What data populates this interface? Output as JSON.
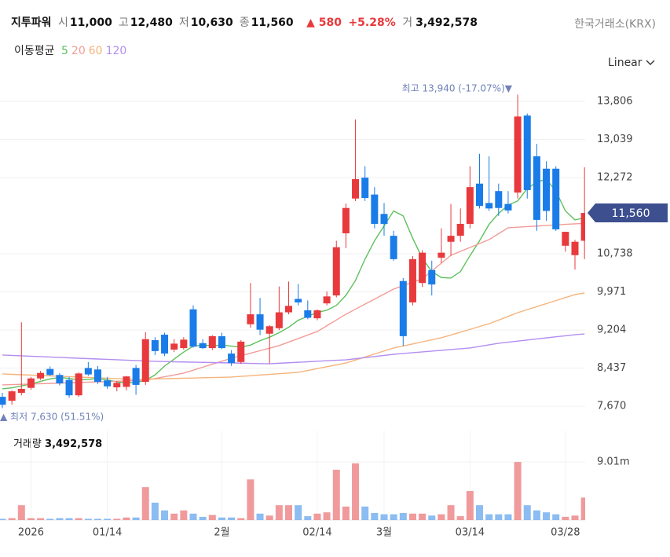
{
  "chart_data": {
    "type": "candlestick",
    "header": {
      "name": "지투파워",
      "quotes": [
        {
          "label": "시",
          "value": "11,000"
        },
        {
          "label": "고",
          "value": "12,480"
        },
        {
          "label": "저",
          "value": "10,630"
        },
        {
          "label": "종",
          "value": "11,560"
        }
      ],
      "change": "▲ 580",
      "change_pct": "+5.28%",
      "turnover_label": "거",
      "turnover": "3,492,578",
      "exchange": "한국거래소(KRX)"
    },
    "ma_title": "이동평균",
    "scale": "Linear",
    "high_note": "최고 13,940 (-17.07%)▼",
    "low_note": "▲ 최저 7,630 (51.51%)",
    "volume_title": "거래량",
    "volume_value": "3,492,578",
    "last_price": {
      "value": 11560,
      "label": "11,560"
    },
    "up_color": "#e8393c",
    "down_color": "#1a7ce8",
    "volume_up_color": "#f09a9c",
    "volume_down_color": "#8bbcf2",
    "categories": [
      null,
      null,
      null,
      "2026",
      null,
      null,
      null,
      null,
      null,
      null,
      null,
      "01/14",
      null,
      null,
      null,
      null,
      null,
      null,
      null,
      null,
      null,
      null,
      null,
      "2월",
      null,
      null,
      null,
      null,
      null,
      null,
      null,
      null,
      null,
      "02/14",
      null,
      null,
      null,
      null,
      null,
      null,
      "3월",
      null,
      null,
      null,
      null,
      null,
      null,
      null,
      null,
      "03/14",
      null,
      null,
      null,
      null,
      null,
      null,
      null,
      null,
      null,
      "03/28",
      null,
      null
    ],
    "ohlc": {
      "open": [
        7860,
        7780,
        7940,
        8040,
        8230,
        8420,
        8300,
        8200,
        7890,
        8440,
        8410,
        8190,
        8050,
        8060,
        8440,
        8160,
        9000,
        9110,
        8810,
        8840,
        9620,
        8940,
        8840,
        9080,
        8730,
        8560,
        9320,
        9520,
        9130,
        9240,
        9560,
        9830,
        9600,
        9440,
        9740,
        9900,
        11150,
        11850,
        12270,
        11930,
        11540,
        11100,
        10190,
        9760,
        10150,
        10410,
        10660,
        10980,
        11100,
        11340,
        12150,
        11760,
        12000,
        11740,
        11970,
        13520,
        12700,
        12450,
        12450,
        10900,
        10710,
        11000
      ],
      "high": [
        7940,
        7990,
        9360,
        8260,
        8380,
        8470,
        8340,
        8260,
        8350,
        8560,
        8480,
        8260,
        8180,
        8280,
        8500,
        9160,
        9060,
        9150,
        9020,
        9060,
        9700,
        9020,
        9100,
        9150,
        8800,
        9000,
        10150,
        9850,
        9300,
        10080,
        10180,
        10130,
        9800,
        9620,
        9980,
        11000,
        11750,
        13440,
        12500,
        12080,
        11760,
        11200,
        10250,
        10690,
        10810,
        10600,
        11250,
        11740,
        11650,
        12500,
        12750,
        12700,
        12150,
        12000,
        13940,
        13560,
        12950,
        12600,
        12500,
        11180,
        11020,
        12480
      ],
      "low": [
        7630,
        7700,
        7890,
        8000,
        8200,
        8280,
        8090,
        7840,
        7860,
        8280,
        8120,
        8020,
        7970,
        7990,
        7900,
        8100,
        8700,
        8680,
        8760,
        8810,
        8850,
        8820,
        8800,
        8820,
        8480,
        8520,
        9250,
        9100,
        8530,
        9200,
        9520,
        9700,
        9420,
        9400,
        9700,
        9860,
        10850,
        11800,
        11800,
        11250,
        11100,
        10600,
        8880,
        9700,
        10070,
        9900,
        10550,
        10700,
        10980,
        11250,
        11650,
        11600,
        11500,
        11550,
        11850,
        11850,
        11200,
        11400,
        11200,
        10780,
        10420,
        10630
      ],
      "close": [
        7700,
        7970,
        8020,
        8230,
        8340,
        8300,
        8130,
        7890,
        8330,
        8310,
        8160,
        8070,
        8140,
        8270,
        8100,
        9020,
        8780,
        8730,
        8930,
        9010,
        8870,
        8840,
        9080,
        8840,
        8540,
        8970,
        9520,
        9210,
        9280,
        9560,
        9690,
        9760,
        9450,
        9600,
        9880,
        10870,
        11660,
        12240,
        11860,
        11340,
        11340,
        10630,
        9080,
        10630,
        10760,
        10120,
        10760,
        11100,
        11340,
        12080,
        11700,
        11650,
        11660,
        11610,
        13500,
        12020,
        11420,
        11600,
        11230,
        11180,
        10980,
        11560
      ]
    },
    "volume": [
      0.2,
      0.3,
      2.3,
      0.3,
      0.3,
      0.2,
      0.3,
      0.3,
      0.3,
      0.2,
      0.2,
      0.2,
      0.2,
      0.4,
      0.4,
      5.1,
      2.7,
      1.5,
      1.0,
      1.5,
      1.0,
      0.5,
      0.8,
      0.4,
      0.4,
      0.3,
      6.3,
      1.0,
      0.7,
      2.3,
      2.3,
      2.3,
      0.6,
      1.0,
      1.2,
      7.8,
      2.1,
      8.8,
      2.1,
      1.1,
      0.9,
      0.9,
      1.1,
      1.0,
      1.0,
      0.7,
      0.9,
      2.3,
      0.6,
      4.5,
      2.3,
      0.9,
      0.9,
      0.9,
      9.0,
      2.3,
      1.5,
      1.2,
      0.9,
      0.5,
      0.7,
      3.49
    ],
    "moving_averages": [
      {
        "name": "5",
        "color": "#5cc15c",
        "values": [
          8020,
          8040,
          8080,
          8120,
          8170,
          8220,
          8250,
          8230,
          8200,
          8210,
          8230,
          8200,
          8160,
          8140,
          8150,
          8190,
          8300,
          8480,
          8620,
          8760,
          8880,
          8900,
          8890,
          8900,
          8880,
          8860,
          8900,
          8990,
          9060,
          9150,
          9260,
          9400,
          9480,
          9560,
          9600,
          9700,
          9900,
          10200,
          10630,
          11000,
          11300,
          11600,
          11500,
          11050,
          10650,
          10380,
          10260,
          10250,
          10380,
          10700,
          11000,
          11330,
          11550,
          11720,
          11800,
          12050,
          12180,
          12240,
          12000,
          11600,
          11420,
          11460
        ]
      },
      {
        "name": "20",
        "color": "#f29c97",
        "values": [
          8100,
          8106,
          8112,
          8118,
          8124,
          8130,
          8136,
          8142,
          8148,
          8154,
          8160,
          8166,
          8172,
          8178,
          8184,
          8190,
          8227,
          8263,
          8300,
          8336,
          8396,
          8456,
          8516,
          8576,
          8636,
          8687,
          8738,
          8788,
          8839,
          8890,
          8961,
          9032,
          9103,
          9174,
          9290,
          9406,
          9522,
          9623,
          9724,
          9826,
          9927,
          10028,
          10096,
          10165,
          10233,
          10391,
          10549,
          10707,
          10786,
          10865,
          10944,
          11023,
          11142,
          11261,
          11273,
          11285,
          11296,
          11308,
          11319,
          11330,
          11340,
          11350
        ]
      },
      {
        "name": "60",
        "color": "#f5b47c",
        "values": [
          8320,
          8312,
          8304,
          8296,
          8289,
          8281,
          8273,
          8265,
          8257,
          8249,
          8242,
          8234,
          8226,
          8218,
          8210,
          8215,
          8219,
          8224,
          8229,
          8234,
          8238,
          8243,
          8248,
          8252,
          8257,
          8271,
          8284,
          8298,
          8311,
          8325,
          8338,
          8352,
          8390,
          8427,
          8465,
          8502,
          8540,
          8600,
          8661,
          8721,
          8782,
          8842,
          8883,
          8924,
          8966,
          9007,
          9048,
          9104,
          9161,
          9217,
          9274,
          9330,
          9404,
          9479,
          9553,
          9614,
          9674,
          9735,
          9796,
          9856,
          9917,
          9950
        ]
      },
      {
        "name": "120",
        "color": "#b38ef0",
        "values": [
          8700,
          8692,
          8684,
          8676,
          8668,
          8660,
          8652,
          8644,
          8636,
          8628,
          8620,
          8613,
          8605,
          8597,
          8589,
          8581,
          8573,
          8569,
          8565,
          8561,
          8557,
          8553,
          8549,
          8545,
          8541,
          8537,
          8533,
          8529,
          8525,
          8535,
          8545,
          8555,
          8565,
          8575,
          8585,
          8595,
          8604,
          8626,
          8648,
          8670,
          8692,
          8715,
          8731,
          8747,
          8763,
          8779,
          8795,
          8811,
          8827,
          8842,
          8874,
          8906,
          8937,
          8959,
          8980,
          9002,
          9024,
          9045,
          9067,
          9088,
          9110,
          9125
        ]
      }
    ],
    "ylim": [
      7308,
      14264
    ],
    "yticks": [
      {
        "value": 7670,
        "label": "7,670"
      },
      {
        "value": 8437,
        "label": "8,437"
      },
      {
        "value": 9204,
        "label": "9,204"
      },
      {
        "value": 9971,
        "label": "9,971"
      },
      {
        "value": 10738,
        "label": "10,738"
      },
      {
        "value": 12272,
        "label": "12,272"
      },
      {
        "value": 13039,
        "label": "13,039"
      },
      {
        "value": 13806,
        "label": "13,806"
      }
    ],
    "volume_ylim": [
      0,
      13.88
    ],
    "volume_yticks": [
      {
        "value": 9.01,
        "label": "9.01m"
      }
    ],
    "grid": true
  }
}
